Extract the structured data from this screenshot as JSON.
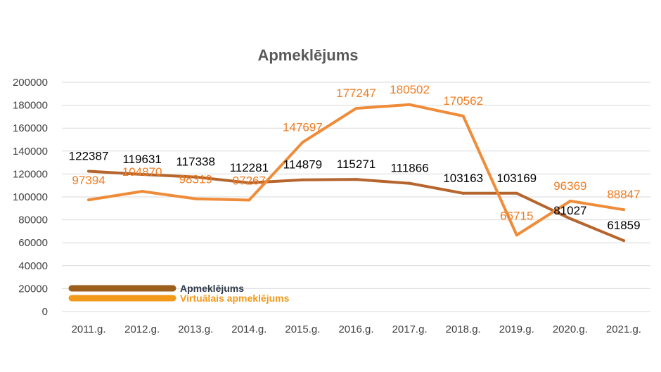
{
  "chart_data": {
    "type": "line",
    "title": "Apmeklējums",
    "xlabel": "",
    "ylabel": "",
    "ylim": [
      0,
      200000
    ],
    "yticks": [
      0,
      20000,
      40000,
      60000,
      80000,
      100000,
      120000,
      140000,
      160000,
      180000,
      200000
    ],
    "grid": true,
    "legend_placement": "bottom-left",
    "categories": [
      "2011.g.",
      "2012.g.",
      "2013.g.",
      "2014.g.",
      "2015.g.",
      "2016.g.",
      "2017.g.",
      "2018.g.",
      "2019.g.",
      "2020.g.",
      "2021.g."
    ],
    "series": [
      {
        "name": "Apmeklējums",
        "color": "#b5652d",
        "legend_color": "#9c5e1b",
        "label_color": "#000000",
        "values": [
          122387,
          119631,
          117338,
          112281,
          114879,
          115271,
          111866,
          103163,
          103169,
          81027,
          61859
        ]
      },
      {
        "name": "Virtuālais apmeklējums",
        "color": "#ef8c3a",
        "legend_color": "#f39a1b",
        "label_color": "#ef7d22",
        "values": [
          97394,
          104870,
          98319,
          97267,
          147697,
          177247,
          180502,
          170562,
          66715,
          96369,
          88847
        ]
      }
    ]
  }
}
